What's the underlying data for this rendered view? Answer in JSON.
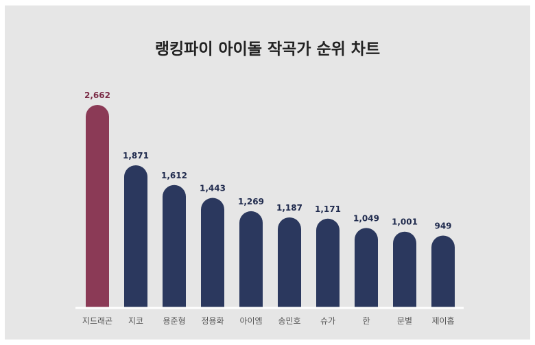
{
  "chart_data": {
    "type": "bar",
    "title": "랭킹파이 아이돌 작곡가 순위 차트",
    "categories": [
      "지드래곤",
      "지코",
      "용준형",
      "정용화",
      "아이엠",
      "송민호",
      "슈가",
      "한",
      "문별",
      "제이홉"
    ],
    "values": [
      2662,
      1871,
      1612,
      1443,
      1269,
      1187,
      1171,
      1049,
      1001,
      949
    ],
    "value_labels": [
      "2,662",
      "1,871",
      "1,612",
      "1,443",
      "1,269",
      "1,187",
      "1,171",
      "1,049",
      "1,001",
      "949"
    ],
    "highlight_index": 0,
    "colors": {
      "highlight": "#8b3a56",
      "bar": "#2b385e",
      "highlight_label": "#7a2a45",
      "label": "#1f2a4d",
      "background": "#e6e6e6",
      "baseline": "#ffffff"
    },
    "grid": false,
    "legend": "none"
  }
}
